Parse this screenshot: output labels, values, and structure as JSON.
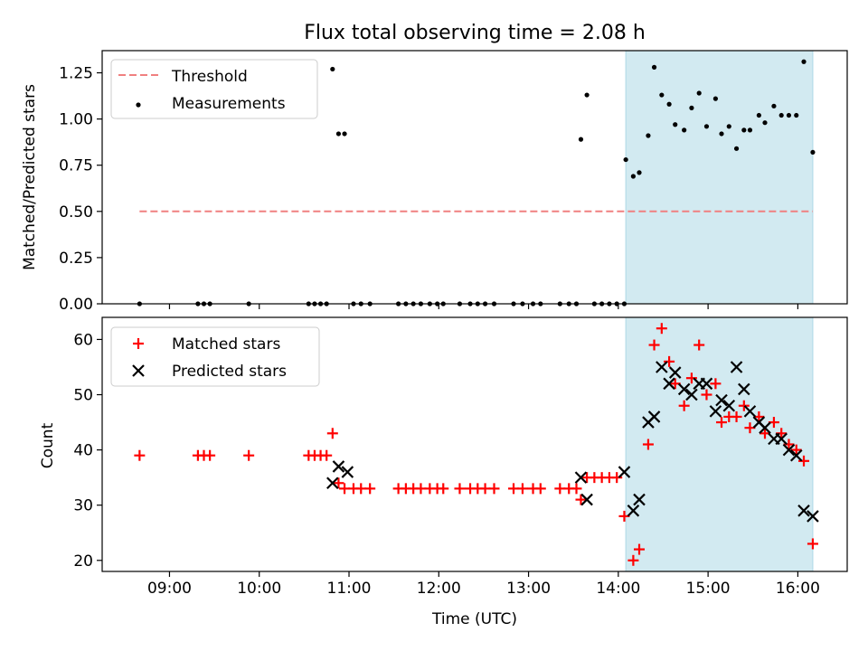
{
  "figure": {
    "title": "Flux total observing time = 2.08 h",
    "xlabel": "Time (UTC)",
    "x_ticks": [
      "09:00",
      "10:00",
      "11:00",
      "12:00",
      "13:00",
      "14:00",
      "15:00",
      "16:00"
    ],
    "colors": {
      "threshold": "#f08080",
      "measurements": "#000000",
      "matched": "#ff0000",
      "predicted": "#000000",
      "observing_window": "#add8e6"
    }
  },
  "chart_data": [
    {
      "type": "scatter",
      "panel": "top",
      "ylabel": "Matched/Predicted stars",
      "xlim": [
        "08:15",
        "16:33"
      ],
      "ylim": [
        0,
        1.37
      ],
      "yticks": [
        "0.00",
        "0.25",
        "0.50",
        "0.75",
        "1.00",
        "1.25"
      ],
      "grid": false,
      "legend_position": "upper-left",
      "legend": [
        "Threshold",
        "Measurements"
      ],
      "shaded_region": [
        "14:05",
        "16:10"
      ],
      "threshold": {
        "name": "Threshold",
        "value": 0.5,
        "x_start": "08:40",
        "x_end": "16:10"
      },
      "series": [
        {
          "name": "Measurements",
          "points": [
            [
              "08:40",
              0
            ],
            [
              "09:19",
              0
            ],
            [
              "09:23",
              0
            ],
            [
              "09:27",
              0
            ],
            [
              "09:53",
              0
            ],
            [
              "10:33",
              0
            ],
            [
              "10:37",
              0
            ],
            [
              "10:41",
              0
            ],
            [
              "10:45",
              0
            ],
            [
              "10:49",
              1.27
            ],
            [
              "10:53",
              0.92
            ],
            [
              "10:57",
              0.92
            ],
            [
              "11:03",
              0
            ],
            [
              "11:08",
              0
            ],
            [
              "11:14",
              0
            ],
            [
              "11:33",
              0
            ],
            [
              "11:38",
              0
            ],
            [
              "11:43",
              0
            ],
            [
              "11:48",
              0
            ],
            [
              "11:54",
              0
            ],
            [
              "11:59",
              0
            ],
            [
              "12:03",
              0
            ],
            [
              "12:14",
              0
            ],
            [
              "12:21",
              0
            ],
            [
              "12:26",
              0
            ],
            [
              "12:31",
              0
            ],
            [
              "12:37",
              0
            ],
            [
              "12:50",
              0
            ],
            [
              "12:56",
              0
            ],
            [
              "13:03",
              0
            ],
            [
              "13:08",
              0
            ],
            [
              "13:21",
              0
            ],
            [
              "13:27",
              0
            ],
            [
              "13:32",
              0
            ],
            [
              "13:35",
              0.89
            ],
            [
              "13:39",
              1.13
            ],
            [
              "13:44",
              0
            ],
            [
              "13:49",
              0
            ],
            [
              "13:54",
              0
            ],
            [
              "13:59",
              0
            ],
            [
              "14:04",
              0
            ],
            [
              "14:05",
              0.78
            ],
            [
              "14:10",
              0.69
            ],
            [
              "14:14",
              0.71
            ],
            [
              "14:20",
              0.91
            ],
            [
              "14:24",
              1.28
            ],
            [
              "14:29",
              1.13
            ],
            [
              "14:34",
              1.08
            ],
            [
              "14:38",
              0.97
            ],
            [
              "14:44",
              0.94
            ],
            [
              "14:49",
              1.06
            ],
            [
              "14:54",
              1.14
            ],
            [
              "14:59",
              0.96
            ],
            [
              "15:05",
              1.11
            ],
            [
              "15:09",
              0.92
            ],
            [
              "15:14",
              0.96
            ],
            [
              "15:19",
              0.84
            ],
            [
              "15:24",
              0.94
            ],
            [
              "15:28",
              0.94
            ],
            [
              "15:34",
              1.02
            ],
            [
              "15:38",
              0.98
            ],
            [
              "15:44",
              1.07
            ],
            [
              "15:49",
              1.02
            ],
            [
              "15:54",
              1.02
            ],
            [
              "15:59",
              1.02
            ],
            [
              "16:04",
              1.31
            ],
            [
              "16:10",
              0.82
            ]
          ]
        }
      ]
    },
    {
      "type": "scatter",
      "panel": "bottom",
      "ylabel": "Count",
      "xlabel": "Time (UTC)",
      "xlim": [
        "08:15",
        "16:33"
      ],
      "ylim": [
        18,
        64
      ],
      "yticks": [
        "20",
        "30",
        "40",
        "50",
        "60"
      ],
      "grid": false,
      "legend_position": "upper-left",
      "legend": [
        "Matched stars",
        "Predicted stars"
      ],
      "shaded_region": [
        "14:05",
        "16:10"
      ],
      "series": [
        {
          "name": "Matched stars",
          "marker": "plus",
          "points": [
            [
              "08:40",
              39
            ],
            [
              "09:19",
              39
            ],
            [
              "09:23",
              39
            ],
            [
              "09:27",
              39
            ],
            [
              "09:53",
              39
            ],
            [
              "10:33",
              39
            ],
            [
              "10:37",
              39
            ],
            [
              "10:41",
              39
            ],
            [
              "10:45",
              39
            ],
            [
              "10:49",
              43
            ],
            [
              "10:53",
              34
            ],
            [
              "10:57",
              33
            ],
            [
              "11:03",
              33
            ],
            [
              "11:08",
              33
            ],
            [
              "11:14",
              33
            ],
            [
              "11:33",
              33
            ],
            [
              "11:38",
              33
            ],
            [
              "11:43",
              33
            ],
            [
              "11:48",
              33
            ],
            [
              "11:54",
              33
            ],
            [
              "11:59",
              33
            ],
            [
              "12:03",
              33
            ],
            [
              "12:14",
              33
            ],
            [
              "12:21",
              33
            ],
            [
              "12:26",
              33
            ],
            [
              "12:31",
              33
            ],
            [
              "12:37",
              33
            ],
            [
              "12:50",
              33
            ],
            [
              "12:56",
              33
            ],
            [
              "13:03",
              33
            ],
            [
              "13:08",
              33
            ],
            [
              "13:21",
              33
            ],
            [
              "13:27",
              33
            ],
            [
              "13:32",
              33
            ],
            [
              "13:35",
              31
            ],
            [
              "13:39",
              35
            ],
            [
              "13:44",
              35
            ],
            [
              "13:49",
              35
            ],
            [
              "13:54",
              35
            ],
            [
              "13:59",
              35
            ],
            [
              "14:04",
              28
            ],
            [
              "14:10",
              20
            ],
            [
              "14:14",
              22
            ],
            [
              "14:20",
              41
            ],
            [
              "14:24",
              59
            ],
            [
              "14:29",
              62
            ],
            [
              "14:34",
              56
            ],
            [
              "14:38",
              52
            ],
            [
              "14:44",
              48
            ],
            [
              "14:49",
              53
            ],
            [
              "14:54",
              59
            ],
            [
              "14:59",
              50
            ],
            [
              "15:05",
              52
            ],
            [
              "15:09",
              45
            ],
            [
              "15:14",
              46
            ],
            [
              "15:19",
              46
            ],
            [
              "15:24",
              48
            ],
            [
              "15:28",
              44
            ],
            [
              "15:34",
              46
            ],
            [
              "15:38",
              43
            ],
            [
              "15:44",
              45
            ],
            [
              "15:49",
              43
            ],
            [
              "15:54",
              41
            ],
            [
              "15:59",
              40
            ],
            [
              "16:04",
              38
            ],
            [
              "16:10",
              23
            ]
          ]
        },
        {
          "name": "Predicted stars",
          "marker": "x",
          "points": [
            [
              "10:49",
              34
            ],
            [
              "10:53",
              37
            ],
            [
              "10:59",
              36
            ],
            [
              "13:35",
              35
            ],
            [
              "13:39",
              31
            ],
            [
              "14:04",
              36
            ],
            [
              "14:10",
              29
            ],
            [
              "14:14",
              31
            ],
            [
              "14:20",
              45
            ],
            [
              "14:24",
              46
            ],
            [
              "14:29",
              55
            ],
            [
              "14:34",
              52
            ],
            [
              "14:38",
              54
            ],
            [
              "14:44",
              51
            ],
            [
              "14:49",
              50
            ],
            [
              "14:54",
              52
            ],
            [
              "14:59",
              52
            ],
            [
              "15:05",
              47
            ],
            [
              "15:09",
              49
            ],
            [
              "15:14",
              48
            ],
            [
              "15:19",
              55
            ],
            [
              "15:24",
              51
            ],
            [
              "15:28",
              47
            ],
            [
              "15:34",
              45
            ],
            [
              "15:38",
              44
            ],
            [
              "15:44",
              42
            ],
            [
              "15:49",
              42
            ],
            [
              "15:54",
              40
            ],
            [
              "15:59",
              39
            ],
            [
              "16:04",
              29
            ],
            [
              "16:10",
              28
            ]
          ]
        }
      ]
    }
  ]
}
